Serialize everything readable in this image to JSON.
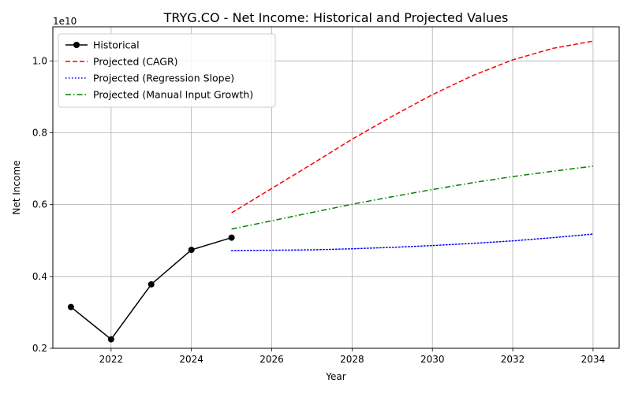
{
  "chart_data": {
    "type": "line",
    "title": "TRYG.CO - Net Income: Historical and Projected Values",
    "xlabel": "Year",
    "ylabel": "Net Income",
    "y_offset_label": "1e10",
    "xlim": [
      2020.55,
      2034.65
    ],
    "ylim": [
      0.2,
      1.095
    ],
    "x_ticks": [
      2022,
      2024,
      2026,
      2028,
      2030,
      2032,
      2034
    ],
    "y_ticks": [
      0.2,
      0.4,
      0.6,
      0.8,
      1.0
    ],
    "y_tick_labels": [
      "0.2",
      "0.4",
      "0.6",
      "0.8",
      "1.0"
    ],
    "grid": true,
    "legend_position": "upper-left",
    "series": [
      {
        "name": "Historical",
        "color": "#000000",
        "style": "solid",
        "marker": "circle",
        "x": [
          2021,
          2022,
          2023,
          2024,
          2025
        ],
        "y": [
          0.315,
          0.225,
          0.378,
          0.474,
          0.508
        ]
      },
      {
        "name": "Projected (CAGR)",
        "color": "#ff0000",
        "style": "dashed",
        "marker": "none",
        "x": [
          2025,
          2026,
          2027,
          2028,
          2029,
          2030,
          2031,
          2032,
          2033,
          2034
        ],
        "y": [
          0.577,
          0.645,
          0.713,
          0.782,
          0.846,
          0.906,
          0.959,
          1.003,
          1.035,
          1.055
        ]
      },
      {
        "name": "Projected (Regression Slope)",
        "color": "#0000ff",
        "style": "dotted",
        "marker": "none",
        "x": [
          2025,
          2026,
          2027,
          2028,
          2029,
          2030,
          2031,
          2032,
          2033,
          2034
        ],
        "y": [
          0.472,
          0.473,
          0.474,
          0.477,
          0.481,
          0.486,
          0.492,
          0.499,
          0.508,
          0.518
        ]
      },
      {
        "name": "Projected (Manual Input Growth)",
        "color": "#008000",
        "style": "dashdot",
        "marker": "none",
        "x": [
          2025,
          2026,
          2027,
          2028,
          2029,
          2030,
          2031,
          2032,
          2033,
          2034
        ],
        "y": [
          0.532,
          0.555,
          0.578,
          0.601,
          0.622,
          0.642,
          0.661,
          0.678,
          0.693,
          0.707
        ]
      }
    ]
  }
}
